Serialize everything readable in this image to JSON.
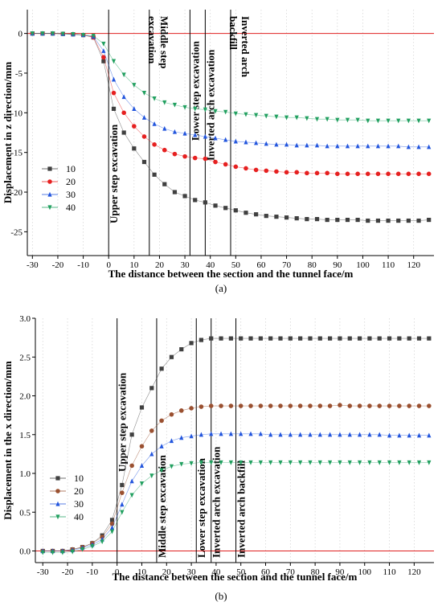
{
  "chart_data": [
    {
      "type": "line",
      "panel_label": "(a)",
      "xlabel": "The distance between the section and the tunnel face/m",
      "ylabel": "Displacement in z direction/mm",
      "xlim": [
        -32,
        128
      ],
      "ylim": [
        -28,
        3
      ],
      "xticks": [
        -30,
        -20,
        -10,
        0,
        10,
        20,
        30,
        40,
        50,
        60,
        70,
        80,
        90,
        100,
        110,
        120
      ],
      "yticks": [
        0,
        -5,
        -10,
        -15,
        -20,
        -25
      ],
      "reference_line": 0,
      "grid": "x-dotted",
      "legend_placement": "lower-left",
      "stage_lines": [
        {
          "x": 0,
          "label": "Upper step excavation"
        },
        {
          "x": 16,
          "label": "Middle step excavation"
        },
        {
          "x": 32,
          "label": "Lower step excavation"
        },
        {
          "x": 38,
          "label": "Inverted arch excavation"
        },
        {
          "x": 48,
          "label": "Inverted arch backfill"
        }
      ],
      "x": [
        -30,
        -26,
        -22,
        -18,
        -14,
        -10,
        -6,
        -2,
        2,
        6,
        10,
        14,
        18,
        22,
        26,
        30,
        34,
        38,
        42,
        46,
        50,
        54,
        58,
        62,
        66,
        70,
        74,
        78,
        82,
        86,
        90,
        94,
        98,
        102,
        106,
        110,
        114,
        118,
        122,
        126
      ],
      "series": [
        {
          "name": "10",
          "marker": "square",
          "color": "#404040",
          "values": [
            0,
            0,
            0,
            -0.05,
            -0.1,
            -0.2,
            -0.5,
            -3.5,
            -9.5,
            -12.5,
            -14.5,
            -16.2,
            -17.8,
            -19.0,
            -20.0,
            -20.5,
            -21.0,
            -21.3,
            -21.7,
            -22.0,
            -22.3,
            -22.6,
            -22.8,
            -23.0,
            -23.1,
            -23.2,
            -23.3,
            -23.4,
            -23.4,
            -23.5,
            -23.5,
            -23.5,
            -23.5,
            -23.6,
            -23.6,
            -23.6,
            -23.6,
            -23.6,
            -23.6,
            -23.5
          ]
        },
        {
          "name": "20",
          "marker": "circle",
          "color": "#e62020",
          "values": [
            0,
            0,
            0,
            -0.05,
            -0.1,
            -0.2,
            -0.5,
            -3.0,
            -7.5,
            -10.0,
            -11.7,
            -13.0,
            -14.0,
            -14.7,
            -15.2,
            -15.5,
            -15.7,
            -15.8,
            -16.2,
            -16.5,
            -16.8,
            -17.0,
            -17.2,
            -17.3,
            -17.4,
            -17.5,
            -17.5,
            -17.6,
            -17.6,
            -17.6,
            -17.7,
            -17.7,
            -17.7,
            -17.7,
            -17.7,
            -17.7,
            -17.7,
            -17.7,
            -17.7,
            -17.7
          ]
        },
        {
          "name": "30",
          "marker": "triangle-up",
          "color": "#2255dd",
          "values": [
            0,
            0,
            0,
            -0.05,
            -0.1,
            -0.2,
            -0.4,
            -2.2,
            -5.8,
            -8.0,
            -9.5,
            -10.6,
            -11.4,
            -12.0,
            -12.4,
            -12.6,
            -12.8,
            -13.0,
            -13.2,
            -13.4,
            -13.6,
            -13.7,
            -13.8,
            -13.9,
            -14.0,
            -14.0,
            -14.1,
            -14.1,
            -14.1,
            -14.2,
            -14.2,
            -14.2,
            -14.2,
            -14.2,
            -14.2,
            -14.2,
            -14.2,
            -14.3,
            -14.3,
            -14.3
          ]
        },
        {
          "name": "40",
          "marker": "triangle-down",
          "color": "#22a060",
          "values": [
            0,
            0,
            0,
            -0.05,
            -0.1,
            -0.2,
            -0.3,
            -1.3,
            -3.5,
            -5.2,
            -6.5,
            -7.5,
            -8.2,
            -8.7,
            -9.0,
            -9.3,
            -9.5,
            -9.6,
            -9.8,
            -9.9,
            -10.1,
            -10.2,
            -10.3,
            -10.4,
            -10.5,
            -10.6,
            -10.6,
            -10.7,
            -10.8,
            -10.8,
            -10.9,
            -10.9,
            -10.9,
            -11.0,
            -11.0,
            -11.0,
            -11.0,
            -11.0,
            -11.0,
            -11.0
          ]
        }
      ]
    },
    {
      "type": "line",
      "panel_label": "(b)",
      "xlabel": "The distance between the section and the tunnel face/m",
      "ylabel": "Displacement in the x direction/mm",
      "xlim": [
        -33,
        128
      ],
      "ylim": [
        -0.15,
        3.0
      ],
      "xticks": [
        -30,
        -20,
        -10,
        0,
        10,
        20,
        30,
        40,
        50,
        60,
        70,
        80,
        90,
        100,
        110,
        120
      ],
      "yticks": [
        0.0,
        0.5,
        1.0,
        1.5,
        2.0,
        2.5,
        3.0
      ],
      "reference_line": 0,
      "grid": "x-dotted",
      "legend_placement": "lower-left",
      "stage_lines": [
        {
          "x": 0,
          "label": "Upper step excavation"
        },
        {
          "x": 16,
          "label": "Middle step excavation"
        },
        {
          "x": 32,
          "label": "Lower step excavation"
        },
        {
          "x": 38,
          "label": "Inverted arch excavation"
        },
        {
          "x": 48,
          "label": "Inverted arch backfill"
        }
      ],
      "x": [
        -30,
        -26,
        -22,
        -18,
        -14,
        -10,
        -6,
        -2,
        2,
        6,
        10,
        14,
        18,
        22,
        26,
        30,
        34,
        38,
        42,
        46,
        50,
        54,
        58,
        62,
        66,
        70,
        74,
        78,
        82,
        86,
        90,
        94,
        98,
        102,
        106,
        110,
        114,
        118,
        122,
        126
      ],
      "series": [
        {
          "name": "10",
          "marker": "square",
          "color": "#404040",
          "values": [
            0.0,
            0.0,
            0.0,
            0.02,
            0.05,
            0.1,
            0.2,
            0.4,
            0.85,
            1.5,
            1.85,
            2.1,
            2.35,
            2.5,
            2.6,
            2.68,
            2.72,
            2.74,
            2.74,
            2.74,
            2.74,
            2.74,
            2.74,
            2.74,
            2.74,
            2.74,
            2.74,
            2.74,
            2.74,
            2.74,
            2.74,
            2.74,
            2.74,
            2.74,
            2.74,
            2.74,
            2.74,
            2.74,
            2.74,
            2.74
          ]
        },
        {
          "name": "20",
          "marker": "circle",
          "color": "#9a5030",
          "values": [
            0.0,
            0.0,
            0.0,
            0.02,
            0.05,
            0.1,
            0.18,
            0.35,
            0.75,
            1.1,
            1.35,
            1.55,
            1.68,
            1.76,
            1.81,
            1.84,
            1.86,
            1.87,
            1.87,
            1.87,
            1.87,
            1.87,
            1.87,
            1.87,
            1.87,
            1.87,
            1.87,
            1.87,
            1.87,
            1.87,
            1.88,
            1.87,
            1.87,
            1.87,
            1.87,
            1.87,
            1.87,
            1.87,
            1.87,
            1.87
          ]
        },
        {
          "name": "30",
          "marker": "triangle-up",
          "color": "#2255dd",
          "values": [
            0.0,
            0.0,
            0.0,
            0.01,
            0.04,
            0.08,
            0.15,
            0.3,
            0.6,
            0.9,
            1.1,
            1.25,
            1.35,
            1.42,
            1.46,
            1.48,
            1.5,
            1.51,
            1.51,
            1.51,
            1.51,
            1.51,
            1.51,
            1.5,
            1.5,
            1.5,
            1.5,
            1.5,
            1.5,
            1.5,
            1.5,
            1.5,
            1.5,
            1.5,
            1.5,
            1.49,
            1.49,
            1.49,
            1.49,
            1.49
          ]
        },
        {
          "name": "40",
          "marker": "triangle-down",
          "color": "#22a060",
          "values": [
            -0.02,
            -0.02,
            -0.02,
            -0.01,
            0.02,
            0.06,
            0.12,
            0.25,
            0.5,
            0.72,
            0.87,
            0.97,
            1.04,
            1.09,
            1.12,
            1.13,
            1.14,
            1.14,
            1.14,
            1.14,
            1.14,
            1.14,
            1.14,
            1.14,
            1.14,
            1.14,
            1.14,
            1.14,
            1.14,
            1.14,
            1.14,
            1.14,
            1.14,
            1.14,
            1.14,
            1.14,
            1.14,
            1.14,
            1.14,
            1.14
          ]
        }
      ]
    }
  ]
}
